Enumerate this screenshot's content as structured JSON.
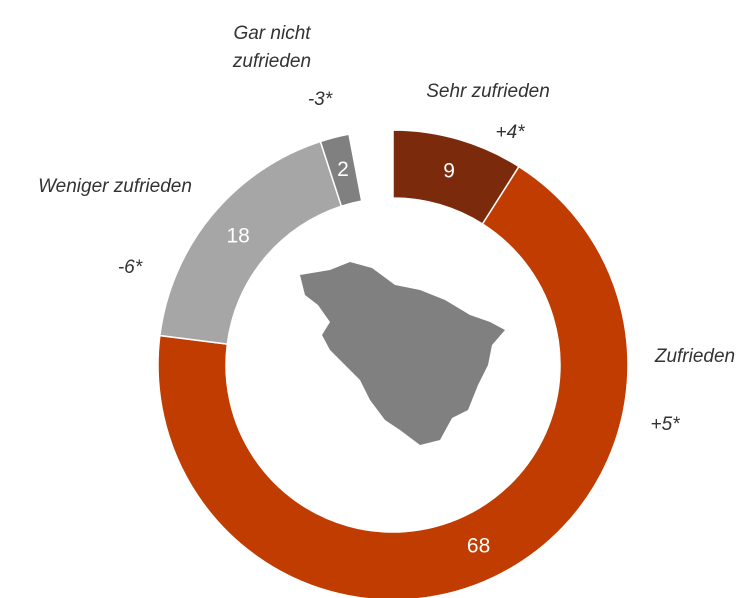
{
  "chart_data": {
    "type": "donut",
    "categories": [
      "Sehr zufrieden",
      "Zufrieden",
      "Weniger zufrieden",
      "Gar nicht zufrieden"
    ],
    "values": [
      9,
      68,
      18,
      2
    ],
    "changes": [
      "+4*",
      "+5*",
      "-6*",
      "-3*"
    ],
    "colors": [
      "#7b2a0c",
      "#c03c00",
      "#a6a6a6",
      "#808080"
    ]
  }
}
